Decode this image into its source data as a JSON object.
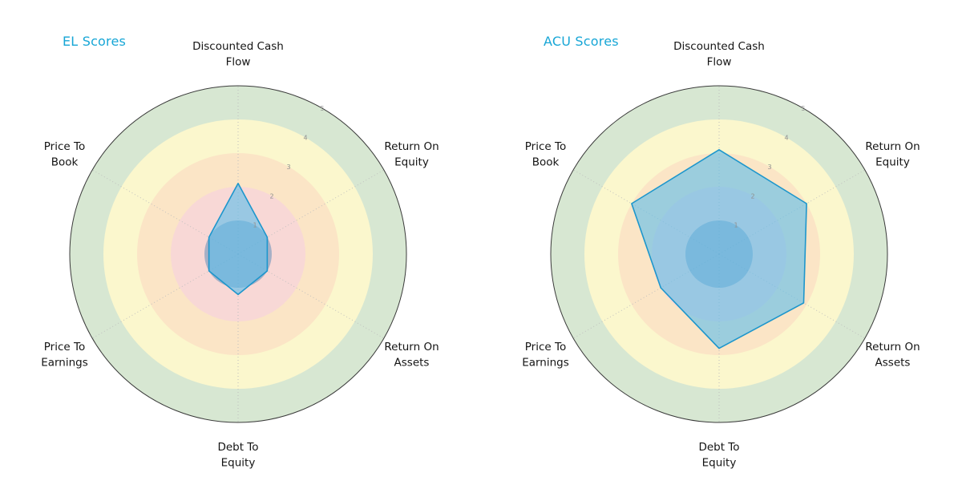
{
  "chart_data": [
    {
      "type": "radar",
      "title": "EL Scores",
      "categories": [
        "Discounted Cash\nFlow",
        "Return On\nEquity",
        "Return On\nAssets",
        "Debt To\nEquity",
        "Price To\nEarnings",
        "Price To\nBook"
      ],
      "values": [
        2.1,
        1.0,
        1.0,
        1.2,
        1.0,
        1.0
      ],
      "rlim": [
        0,
        5
      ],
      "rticks": [
        1,
        2,
        3,
        4,
        5
      ],
      "grid": "spokes-dotted",
      "legend": "none"
    },
    {
      "type": "radar",
      "title": "ACU Scores",
      "categories": [
        "Discounted Cash\nFlow",
        "Return On\nEquity",
        "Return On\nAssets",
        "Debt To\nEquity",
        "Price To\nEarnings",
        "Price To\nBook"
      ],
      "values": [
        3.1,
        3.0,
        2.9,
        2.8,
        2.0,
        3.0
      ],
      "rlim": [
        0,
        5
      ],
      "rticks": [
        1,
        2,
        3,
        4,
        5
      ],
      "grid": "spokes-dotted",
      "legend": "none"
    }
  ],
  "style": {
    "title_color": "#17a6d6",
    "label_color": "#141414",
    "tick_color": "#8f8f8f",
    "outer_ring_stroke": "#3a3a3a",
    "spoke_color": "#bdbdbd",
    "series_fill": "rgba(96,190,235,0.62)",
    "series_stroke": "#1d96cc",
    "center_circle_fill": "rgba(66,129,180,0.45)",
    "bands": [
      {
        "to": 5,
        "color": "#d7e7d2",
        "name": "band-green-4-5"
      },
      {
        "to": 4,
        "color": "#fbf7cd",
        "name": "band-yellow-3-4"
      },
      {
        "to": 3,
        "color": "#fbe5c6",
        "name": "band-orange-2-3"
      },
      {
        "to": 2,
        "color": "#f8d8d6",
        "name": "band-pink-0-2"
      }
    ]
  }
}
